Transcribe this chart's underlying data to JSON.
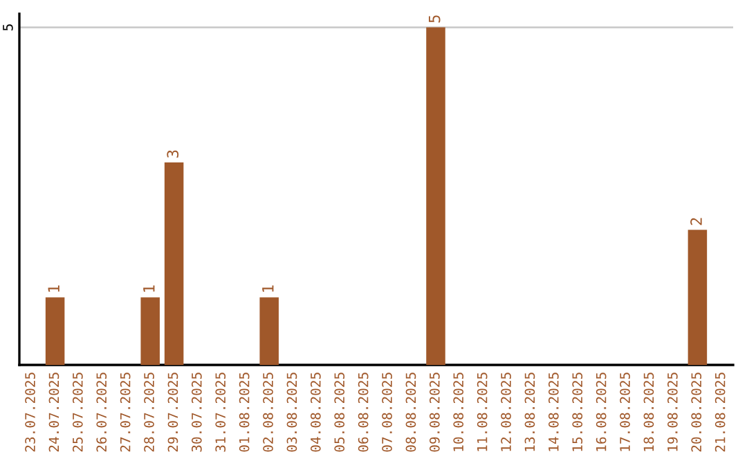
{
  "chart_data": {
    "type": "bar",
    "categories": [
      "23.07.2025",
      "24.07.2025",
      "25.07.2025",
      "26.07.2025",
      "27.07.2025",
      "28.07.2025",
      "29.07.2025",
      "30.07.2025",
      "31.07.2025",
      "01.08.2025",
      "02.08.2025",
      "03.08.2025",
      "04.08.2025",
      "05.08.2025",
      "06.08.2025",
      "07.08.2025",
      "08.08.2025",
      "09.08.2025",
      "10.08.2025",
      "11.08.2025",
      "12.08.2025",
      "13.08.2025",
      "14.08.2025",
      "15.08.2025",
      "16.08.2025",
      "17.08.2025",
      "18.08.2025",
      "19.08.2025",
      "20.08.2025",
      "21.08.2025"
    ],
    "values": [
      0,
      1,
      0,
      0,
      0,
      1,
      3,
      0,
      0,
      0,
      1,
      0,
      0,
      0,
      0,
      0,
      0,
      5,
      0,
      0,
      0,
      0,
      0,
      0,
      0,
      0,
      0,
      0,
      2,
      0
    ],
    "value_labels": [
      null,
      "1",
      null,
      null,
      null,
      "1",
      "3",
      null,
      null,
      null,
      "1",
      null,
      null,
      null,
      null,
      null,
      null,
      "5",
      null,
      null,
      null,
      null,
      null,
      null,
      null,
      null,
      null,
      null,
      "2",
      null
    ],
    "color": "#a0582a",
    "ylim": [
      0,
      5.2
    ],
    "yticks": [
      5
    ],
    "grid": "y"
  }
}
